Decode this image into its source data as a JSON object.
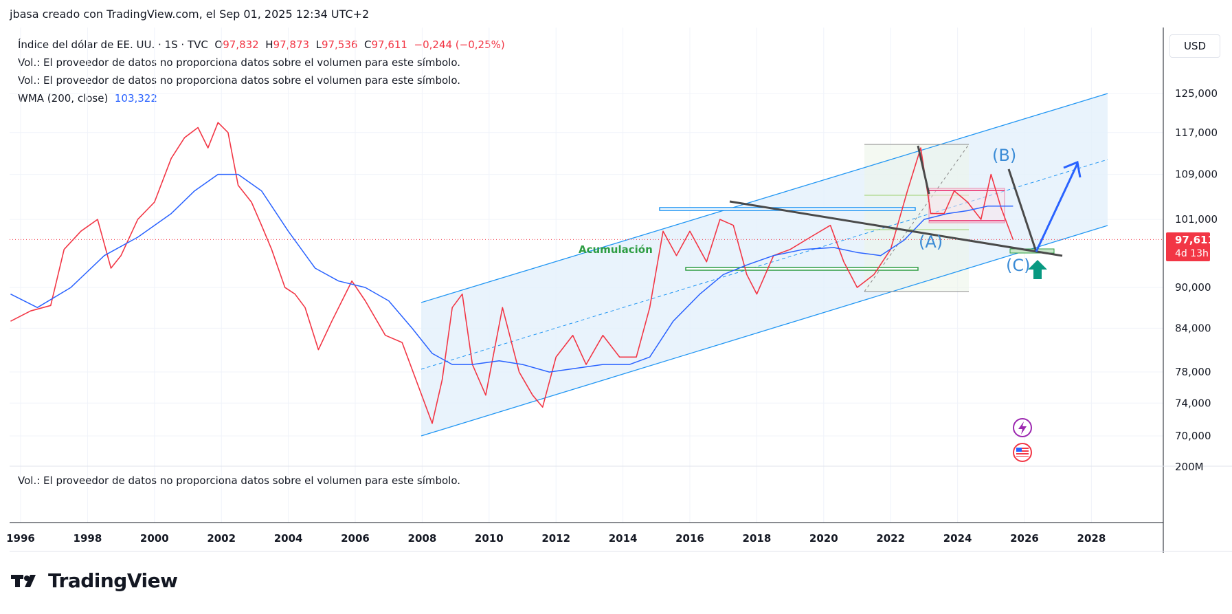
{
  "header": {
    "credit": "jbasa creado con TradingView.com, el Sep 01, 2025 12:34 UTC+2"
  },
  "legend": {
    "symbol": "Índice del dólar de EE. UU. · 1S · TVC",
    "ohlc": [
      {
        "k": "O",
        "v": "97,832"
      },
      {
        "k": "H",
        "v": "97,873"
      },
      {
        "k": "L",
        "v": "97,536"
      },
      {
        "k": "C",
        "v": "97,611"
      }
    ],
    "change": "−0,244 (−0,25%)",
    "vol_msg_1": "Vol.: El proveedor de datos no proporciona datos sobre el volumen para este símbolo.",
    "vol_msg_2": "Vol.: El proveedor de datos no proporciona datos sobre el volumen para este símbolo.",
    "wma_label": "WMA (200, close)",
    "wma_value": "103,322"
  },
  "volume_pane": {
    "message": "Vol.: El proveedor de datos no proporciona datos sobre el volumen para este símbolo.",
    "axis_label": "200M"
  },
  "currency": "USD",
  "price_tag": {
    "value": "97,611",
    "countdown": "4d 13h"
  },
  "brand": "TradingView",
  "annotations": {
    "accumulation": "Acumulación",
    "wave_a": "(A)",
    "wave_b": "(B)",
    "wave_c": "(C)"
  },
  "colors": {
    "up": "#089981",
    "down": "#f23645",
    "wma": "#2962ff",
    "channel": "#2196f3",
    "channel_fill": "#e3f0fb",
    "trendline": "#4a4a4a",
    "price_tag": "#f23645",
    "green_zone": "#2e9d43",
    "arrow_up": "#089981"
  },
  "chart_data": {
    "type": "line",
    "title": "",
    "y_scale": "log",
    "x_ticks": [
      "1996",
      "1998",
      "2000",
      "2002",
      "2004",
      "2006",
      "2008",
      "2010",
      "2012",
      "2014",
      "2016",
      "2018",
      "2020",
      "2022",
      "2024",
      "2026",
      "2028"
    ],
    "y_ticks": [
      "125,000",
      "117,000",
      "109,000",
      "101,000",
      "90,000",
      "84,000",
      "78,000",
      "74,000",
      "70,000"
    ],
    "y_tick_values": [
      125,
      117,
      109,
      101,
      90,
      84,
      78,
      74,
      70
    ],
    "current_price": 97.611,
    "series": [
      {
        "name": "Índice del dólar de EE. UU.",
        "points": [
          [
            1995.7,
            85
          ],
          [
            1996.3,
            86.5
          ],
          [
            1996.9,
            87.3
          ],
          [
            1997.3,
            96
          ],
          [
            1997.8,
            99
          ],
          [
            1998.3,
            101
          ],
          [
            1998.7,
            93
          ],
          [
            1999.0,
            95
          ],
          [
            1999.5,
            101
          ],
          [
            2000.0,
            104
          ],
          [
            2000.5,
            112
          ],
          [
            2000.9,
            116
          ],
          [
            2001.3,
            118
          ],
          [
            2001.6,
            114
          ],
          [
            2001.9,
            119
          ],
          [
            2002.2,
            117
          ],
          [
            2002.5,
            107
          ],
          [
            2002.9,
            104
          ],
          [
            2003.2,
            100
          ],
          [
            2003.5,
            96
          ],
          [
            2003.9,
            90
          ],
          [
            2004.2,
            89
          ],
          [
            2004.5,
            87
          ],
          [
            2004.9,
            81
          ],
          [
            2005.3,
            85
          ],
          [
            2005.9,
            91
          ],
          [
            2006.3,
            88
          ],
          [
            2006.9,
            83
          ],
          [
            2007.4,
            82
          ],
          [
            2007.9,
            76
          ],
          [
            2008.3,
            71.5
          ],
          [
            2008.6,
            77
          ],
          [
            2008.9,
            87
          ],
          [
            2009.2,
            89
          ],
          [
            2009.5,
            79
          ],
          [
            2009.9,
            75
          ],
          [
            2010.4,
            87
          ],
          [
            2010.9,
            78
          ],
          [
            2011.3,
            75
          ],
          [
            2011.6,
            73.5
          ],
          [
            2012.0,
            80
          ],
          [
            2012.5,
            83
          ],
          [
            2012.9,
            79
          ],
          [
            2013.4,
            83
          ],
          [
            2013.9,
            80
          ],
          [
            2014.4,
            80
          ],
          [
            2014.8,
            87
          ],
          [
            2015.2,
            99
          ],
          [
            2015.6,
            95
          ],
          [
            2016.0,
            99
          ],
          [
            2016.5,
            94
          ],
          [
            2016.9,
            101
          ],
          [
            2017.3,
            100
          ],
          [
            2017.7,
            92
          ],
          [
            2018.0,
            89
          ],
          [
            2018.5,
            95
          ],
          [
            2019.0,
            96
          ],
          [
            2019.6,
            98
          ],
          [
            2020.2,
            100
          ],
          [
            2020.6,
            94
          ],
          [
            2021.0,
            90
          ],
          [
            2021.5,
            92
          ],
          [
            2022.0,
            96
          ],
          [
            2022.5,
            106
          ],
          [
            2022.9,
            114
          ],
          [
            2023.2,
            102
          ],
          [
            2023.6,
            102
          ],
          [
            2023.9,
            106
          ],
          [
            2024.3,
            104
          ],
          [
            2024.7,
            101
          ],
          [
            2025.0,
            109
          ],
          [
            2025.3,
            103
          ],
          [
            2025.66,
            97.6
          ]
        ]
      },
      {
        "name": "WMA (200, close)",
        "points": [
          [
            1995.7,
            89
          ],
          [
            1996.5,
            87
          ],
          [
            1997.5,
            90
          ],
          [
            1998.5,
            95
          ],
          [
            1999.5,
            98
          ],
          [
            2000.5,
            102
          ],
          [
            2001.2,
            106
          ],
          [
            2001.9,
            109
          ],
          [
            2002.5,
            109
          ],
          [
            2003.2,
            106
          ],
          [
            2004.0,
            99
          ],
          [
            2004.8,
            93
          ],
          [
            2005.5,
            91
          ],
          [
            2006.3,
            90
          ],
          [
            2007.0,
            88
          ],
          [
            2007.7,
            84
          ],
          [
            2008.3,
            80.5
          ],
          [
            2008.9,
            79
          ],
          [
            2009.5,
            79
          ],
          [
            2010.3,
            79.5
          ],
          [
            2011.0,
            79
          ],
          [
            2011.8,
            78
          ],
          [
            2012.6,
            78.5
          ],
          [
            2013.4,
            79
          ],
          [
            2014.2,
            79
          ],
          [
            2014.8,
            80
          ],
          [
            2015.5,
            85
          ],
          [
            2016.3,
            89
          ],
          [
            2017.0,
            92
          ],
          [
            2017.7,
            93.5
          ],
          [
            2018.5,
            95
          ],
          [
            2019.4,
            96
          ],
          [
            2020.3,
            96.3
          ],
          [
            2021.0,
            95.5
          ],
          [
            2021.7,
            95
          ],
          [
            2022.4,
            97.5
          ],
          [
            2023.0,
            101
          ],
          [
            2023.7,
            102
          ],
          [
            2024.3,
            102.5
          ],
          [
            2024.9,
            103.3
          ],
          [
            2025.66,
            103.3
          ]
        ]
      }
    ]
  }
}
